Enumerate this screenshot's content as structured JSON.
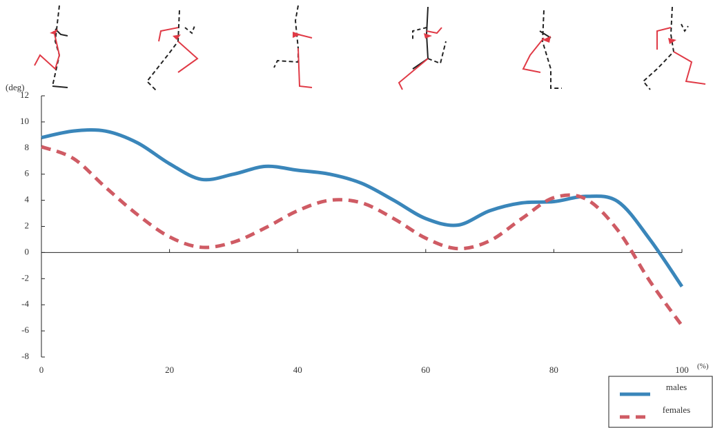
{
  "chart_data": {
    "type": "line",
    "y_unit": "(deg)",
    "x_unit": "(%)",
    "x": [
      0,
      5,
      10,
      15,
      20,
      25,
      30,
      35,
      40,
      45,
      50,
      55,
      60,
      65,
      70,
      75,
      80,
      85,
      90,
      95,
      100
    ],
    "series": [
      {
        "name": "males",
        "color": "#3a86ba",
        "style": "solid",
        "values": [
          8.8,
          9.3,
          9.3,
          8.4,
          6.8,
          5.6,
          6.0,
          6.6,
          6.3,
          6.0,
          5.3,
          4.0,
          2.6,
          2.1,
          3.2,
          3.8,
          3.9,
          4.3,
          3.9,
          1.0,
          -2.6
        ]
      },
      {
        "name": "females",
        "color": "#cf5b64",
        "style": "dashed",
        "values": [
          8.1,
          7.2,
          5.0,
          2.9,
          1.2,
          0.4,
          0.8,
          1.9,
          3.2,
          4.0,
          3.8,
          2.6,
          1.1,
          0.3,
          0.9,
          2.6,
          4.2,
          4.1,
          1.7,
          -2.2,
          -5.6
        ]
      }
    ],
    "xlim": [
      0,
      100
    ],
    "xticks": [
      0,
      20,
      40,
      60,
      80,
      100
    ],
    "ylim": [
      -8,
      12
    ],
    "yticks": [
      -8,
      -6,
      -4,
      -2,
      0,
      2,
      4,
      6,
      8,
      10,
      12
    ],
    "grid": false,
    "legend": "bottom-right"
  }
}
